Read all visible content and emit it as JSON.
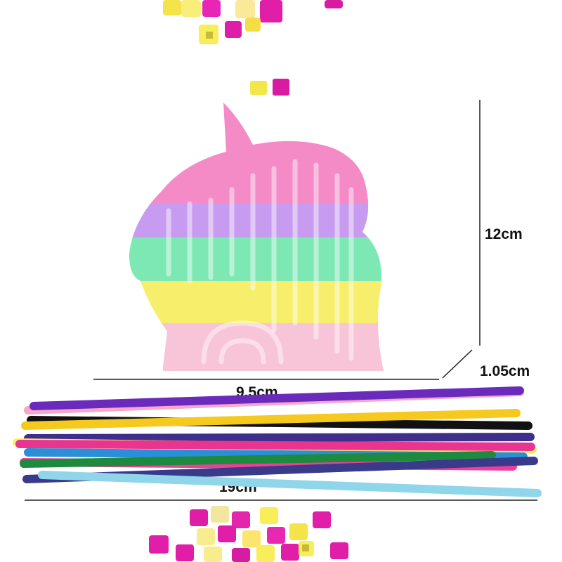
{
  "dimensions": {
    "height": "12cm",
    "thickness": "1.05cm",
    "width": "9.5cm",
    "stick_length": "19cm"
  }
}
